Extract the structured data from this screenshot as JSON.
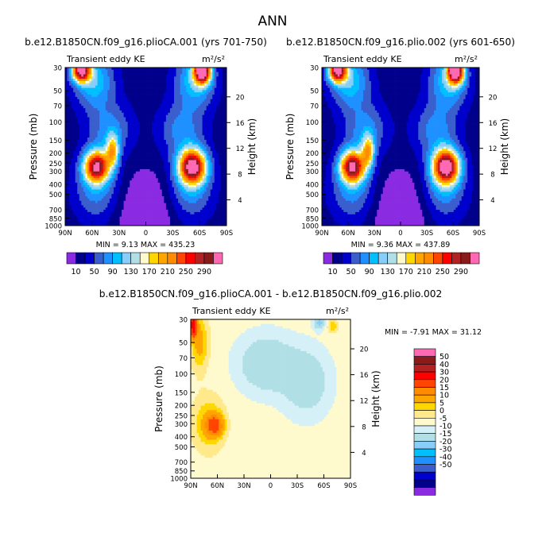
{
  "figure_title": "ANN",
  "palette_abs": [
    "#8a2be2",
    "#00008b",
    "#0000cd",
    "#3a5fcd",
    "#1e90ff",
    "#00bfff",
    "#87cefa",
    "#b0e0e6",
    "#fffacd",
    "#ffd700",
    "#ffa500",
    "#ff8c00",
    "#ff4500",
    "#ff0000",
    "#b22222",
    "#8b1a1a",
    "#ff69b4"
  ],
  "palette_diff": [
    "#8a2be2",
    "#00008b",
    "#0000cd",
    "#3a5fcd",
    "#1e90ff",
    "#00bfff",
    "#87cefa",
    "#b0e0e6",
    "#d6f0f7",
    "#fffacd",
    "#ffe98a",
    "#ffd700",
    "#ffa500",
    "#ff8c00",
    "#ff4500",
    "#ff0000",
    "#b22222",
    "#8b1a1a",
    "#ff69b4"
  ],
  "chart_data": [
    {
      "type": "heatmap",
      "id": "panel1",
      "title": "b.e12.B1850CN.f09_g16.plioCA.001 (yrs 701-750)",
      "left_label": "Transient eddy KE",
      "units": "m²/s²",
      "ylabel": "Pressure (mb)",
      "y2label": "Height (km)",
      "x_ticks": [
        "90N",
        "60N",
        "30N",
        "0",
        "30S",
        "60S",
        "90S"
      ],
      "x_tick_values": [
        90,
        60,
        30,
        0,
        -30,
        -60,
        -90
      ],
      "y_ticks": [
        "30",
        "50",
        "70",
        "100",
        "150",
        "200",
        "250",
        "300",
        "400",
        "500",
        "700",
        "850",
        "1000"
      ],
      "y_tick_values": [
        30,
        50,
        70,
        100,
        150,
        200,
        250,
        300,
        400,
        500,
        700,
        850,
        1000
      ],
      "y2_ticks": [
        "20",
        "16",
        "12",
        "8",
        "4"
      ],
      "y2_tick_values": [
        20,
        16,
        12,
        8,
        4
      ],
      "ylim": [
        1000,
        30
      ],
      "y_scale": "log",
      "stats": "MIN =   9.13   MAX = 435.23",
      "min": 9.13,
      "max": 435.23
    },
    {
      "type": "heatmap",
      "id": "panel2",
      "title": "b.e12.B1850CN.f09_g16.plio.002 (yrs 601-650)",
      "left_label": "Transient eddy KE",
      "units": "m²/s²",
      "ylabel": "Pressure (mb)",
      "y2label": "Height (km)",
      "x_ticks": [
        "90N",
        "60N",
        "30N",
        "0",
        "30S",
        "60S",
        "90S"
      ],
      "x_tick_values": [
        90,
        60,
        30,
        0,
        -30,
        -60,
        -90
      ],
      "y_ticks": [
        "30",
        "50",
        "70",
        "100",
        "150",
        "200",
        "250",
        "300",
        "400",
        "500",
        "700",
        "850",
        "1000"
      ],
      "y_tick_values": [
        30,
        50,
        70,
        100,
        150,
        200,
        250,
        300,
        400,
        500,
        700,
        850,
        1000
      ],
      "y2_ticks": [
        "20",
        "16",
        "12",
        "8",
        "4"
      ],
      "y2_tick_values": [
        20,
        16,
        12,
        8,
        4
      ],
      "ylim": [
        1000,
        30
      ],
      "y_scale": "log",
      "stats": "MIN =   9.36   MAX = 437.89",
      "min": 9.36,
      "max": 437.89
    },
    {
      "type": "heatmap",
      "id": "panel3",
      "title": "b.e12.B1850CN.f09_g16.plioCA.001 - b.e12.B1850CN.f09_g16.plio.002",
      "left_label": "Transient eddy KE",
      "units": "m²/s²",
      "ylabel": "Pressure (mb)",
      "y2label": "Height (km)",
      "x_ticks": [
        "90N",
        "60N",
        "30N",
        "0",
        "30S",
        "60S",
        "90S"
      ],
      "x_tick_values": [
        90,
        60,
        30,
        0,
        -30,
        -60,
        -90
      ],
      "y_ticks": [
        "30",
        "50",
        "70",
        "100",
        "150",
        "200",
        "250",
        "300",
        "400",
        "500",
        "700",
        "850",
        "1000"
      ],
      "y_tick_values": [
        30,
        50,
        70,
        100,
        150,
        200,
        250,
        300,
        400,
        500,
        700,
        850,
        1000
      ],
      "y2_ticks": [
        "20",
        "16",
        "12",
        "8",
        "4"
      ],
      "y2_tick_values": [
        20,
        16,
        12,
        8,
        4
      ],
      "ylim": [
        1000,
        30
      ],
      "y_scale": "log",
      "stats": "MIN =  -7.91   MAX =  31.12",
      "min": -7.91,
      "max": 31.12
    }
  ],
  "colorbar_abs": {
    "labels": [
      "10",
      "50",
      "90",
      "130",
      "170",
      "210",
      "250",
      "290"
    ],
    "levels": [
      10,
      30,
      50,
      70,
      90,
      110,
      130,
      150,
      170,
      190,
      210,
      230,
      250,
      270,
      290,
      310
    ]
  },
  "colorbar_diff": {
    "labels": [
      "50",
      "40",
      "30",
      "20",
      "15",
      "10",
      "5",
      "0",
      "-5",
      "-10",
      "-15",
      "-20",
      "-30",
      "-40",
      "-50"
    ],
    "levels": [
      50,
      40,
      30,
      20,
      15,
      10,
      5,
      0,
      -5,
      -10,
      -15,
      -20,
      -30,
      -40,
      -50
    ]
  }
}
